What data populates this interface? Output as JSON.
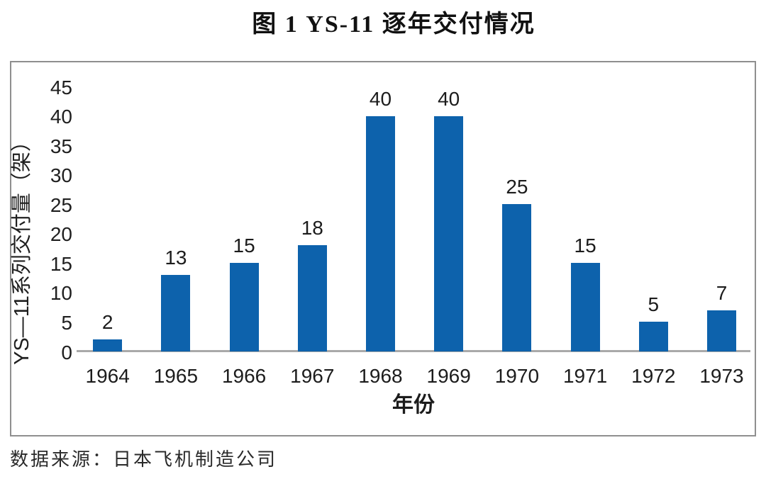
{
  "page": {
    "title": "图 1  YS-11 逐年交付情况",
    "source_note": "数据来源：日本飞机制造公司"
  },
  "chart_data": {
    "type": "bar",
    "title": "图 1  YS-11 逐年交付情况",
    "categories": [
      "1964",
      "1965",
      "1966",
      "1967",
      "1968",
      "1969",
      "1970",
      "1971",
      "1972",
      "1973"
    ],
    "values": [
      2,
      13,
      15,
      18,
      40,
      40,
      25,
      15,
      5,
      7
    ],
    "xlabel": "年份",
    "ylabel": "YS—11系列交付量（架）",
    "ylim": [
      0,
      45
    ],
    "yticks": [
      0,
      5,
      10,
      15,
      20,
      25,
      30,
      35,
      40,
      45
    ],
    "grid": false,
    "legend": "none",
    "data_labels": true,
    "source": "数据来源：日本飞机制造公司"
  },
  "colors": {
    "bar": "#0d62ac",
    "axis_line": "#a9a9a9",
    "frame_border": "#8f8f8f",
    "text": "#1a1a1a"
  }
}
